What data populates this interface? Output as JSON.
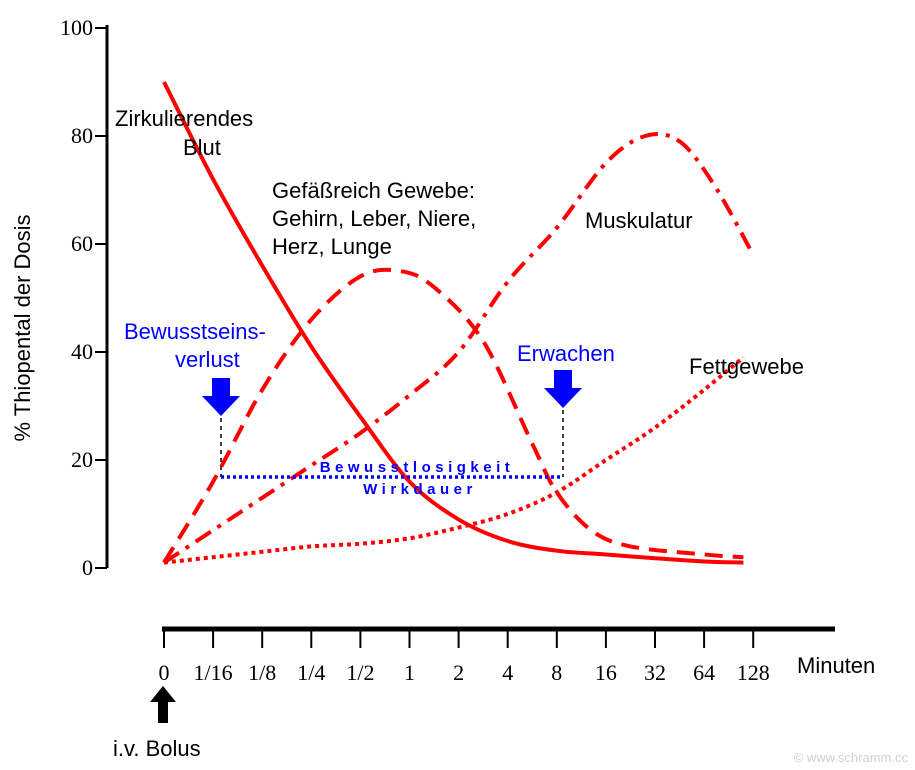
{
  "chart_data": {
    "type": "line",
    "ylabel": "% Thiopental der Dosis",
    "xlabel": "Minuten",
    "ylim": [
      0,
      100
    ],
    "y_ticks": [
      "0",
      "20",
      "40",
      "60",
      "80",
      "100"
    ],
    "x_ticks": [
      "0",
      "1/16",
      "1/8",
      "1/4",
      "1/2",
      "1",
      "2",
      "4",
      "8",
      "16",
      "32",
      "64",
      "128"
    ],
    "series": [
      {
        "name": "Zirkulierendes Blut",
        "color": "#ff0000",
        "style": "solid",
        "points": [
          [
            0,
            90
          ],
          [
            1,
            72
          ],
          [
            2,
            56
          ],
          [
            3,
            41
          ],
          [
            4,
            28
          ],
          [
            5,
            16
          ],
          [
            6,
            9
          ],
          [
            7,
            5
          ],
          [
            8,
            3.2
          ],
          [
            9,
            2.5
          ],
          [
            10,
            1.8
          ],
          [
            11,
            1.2
          ],
          [
            11.8,
            1
          ]
        ]
      },
      {
        "name": "Gefäßreich Gewebe: Gehirn, Leber, Niere, Herz, Lunge",
        "color": "#ff0000",
        "style": "dashed",
        "points": [
          [
            0,
            1
          ],
          [
            1,
            16
          ],
          [
            2,
            33
          ],
          [
            3,
            46
          ],
          [
            4,
            54
          ],
          [
            4.8,
            55
          ],
          [
            5.5,
            52
          ],
          [
            6.5,
            42
          ],
          [
            7.5,
            23
          ],
          [
            8,
            14
          ],
          [
            8.7,
            7
          ],
          [
            9.5,
            4
          ],
          [
            11,
            2.5
          ],
          [
            11.8,
            2
          ]
        ]
      },
      {
        "name": "Muskulatur",
        "color": "#ff0000",
        "style": "dashdot",
        "points": [
          [
            0,
            1
          ],
          [
            1,
            7
          ],
          [
            2,
            13
          ],
          [
            3,
            19
          ],
          [
            4,
            25
          ],
          [
            5,
            32
          ],
          [
            6,
            40
          ],
          [
            7,
            53
          ],
          [
            8,
            63
          ],
          [
            9,
            75
          ],
          [
            9.8,
            80
          ],
          [
            10.5,
            79
          ],
          [
            11.2,
            71
          ],
          [
            12,
            58
          ]
        ]
      },
      {
        "name": "Fettgewebe",
        "color": "#ff0000",
        "style": "dotted",
        "points": [
          [
            0,
            1
          ],
          [
            1,
            2
          ],
          [
            2,
            3
          ],
          [
            3,
            4
          ],
          [
            4,
            4.5
          ],
          [
            5,
            5.5
          ],
          [
            6,
            7.5
          ],
          [
            7,
            10
          ],
          [
            8,
            14
          ],
          [
            9,
            20
          ],
          [
            10,
            26
          ],
          [
            11,
            33
          ],
          [
            11.8,
            39
          ]
        ]
      }
    ],
    "annotations": {
      "loc": {
        "line1": "Bewusstseins-",
        "line2": "verlust",
        "x": 1
      },
      "wake": {
        "text": "Erwachen",
        "x": 8
      },
      "span": {
        "line1": "Bewusstlosigkeit",
        "line2": "Wirkdauer",
        "y": 17
      },
      "bolus": "i.v. Bolus",
      "copyright": "© www.schramm.cc"
    },
    "colors": {
      "curves": "#ff0000",
      "annotation": "#0000ff",
      "axes": "#000000",
      "copyright": "#d0d0d0"
    }
  }
}
